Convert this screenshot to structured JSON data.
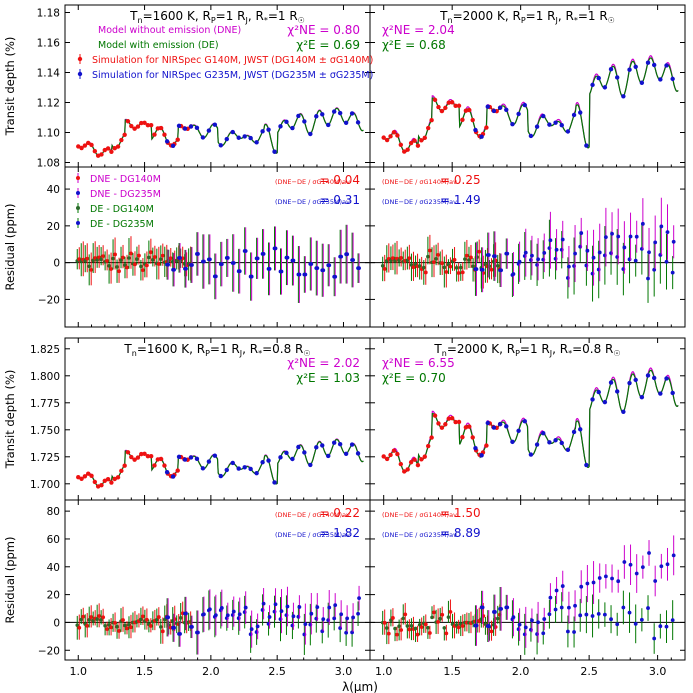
{
  "figure": {
    "xlabel": "λ(μm)",
    "x_ticks": [
      "1.0",
      "1.5",
      "2.0",
      "2.5",
      "3.0"
    ],
    "colors": {
      "ne": "#cc00cc",
      "e": "#007700",
      "red": "#ee1111",
      "blue": "#1111cc",
      "axis": "#000000"
    }
  },
  "chart_data": [
    {
      "type": "line",
      "title": "T$=1600 K, R_P=1 R_J, R*=1 R☉",
      "title_parts": [
        "T",
        "n",
        "=1600 K, R",
        "P",
        "=1 R",
        "J",
        ", R",
        "*",
        "=1 R",
        "☉"
      ],
      "ylabel": "Transit depth (%)",
      "ylim": [
        1.077,
        1.185
      ],
      "yticks": [
        1.08,
        1.1,
        1.12,
        1.14,
        1.16,
        1.18
      ],
      "ytick_labels": [
        "1.08",
        "1.10",
        "1.12",
        "1.14",
        "1.16",
        "1.18"
      ],
      "chi_ne": "χ²NE = 0.80",
      "chi_e": "χ²E = 0.69",
      "legend": [
        "Model without emission (DNE)",
        "Model with emission (DE)",
        "Simulation for NIRSpec G140M, JWST (DG140M ± σG140M)",
        "Simulation for NIRSpec G235M, JWST (DG235M ± σG235M)"
      ]
    },
    {
      "type": "line",
      "title_parts": [
        "T",
        "n",
        "=2000 K, R",
        "P",
        "=1 R",
        "J",
        ", R",
        "*",
        "=1 R",
        "☉"
      ],
      "chi_ne": "χ²NE = 2.04",
      "chi_e": "χ²E = 0.68"
    },
    {
      "type": "scatter",
      "ylabel": "Residual (ppm)",
      "ylim": [
        -35,
        52
      ],
      "yticks": [
        -20,
        0,
        20,
        40
      ],
      "ytick_labels": [
        "−20",
        "0",
        "20",
        "40"
      ],
      "ratio_red": "= 0.04",
      "ratio_blue": "= 0.31",
      "legend": [
        "DNE - DG140M",
        "DNE - DG235M",
        "DE - DG140M",
        "DE - DG235M"
      ]
    },
    {
      "type": "scatter",
      "ratio_red": "= 0.25",
      "ratio_blue": "= 1.49"
    },
    {
      "type": "line",
      "title_parts": [
        "T",
        "n",
        "=1600 K, R",
        "P",
        "=1 R",
        "J",
        ", R",
        "*",
        "=0.8 R",
        "☉"
      ],
      "ylabel": "Transit depth (%)",
      "ylim": [
        1.685,
        1.835
      ],
      "yticks": [
        1.7,
        1.725,
        1.75,
        1.775,
        1.8,
        1.825
      ],
      "ytick_labels": [
        "1.700",
        "1.725",
        "1.750",
        "1.775",
        "1.800",
        "1.825"
      ],
      "chi_ne": "χ²NE = 2.02",
      "chi_e": "χ²E = 1.03"
    },
    {
      "type": "line",
      "title_parts": [
        "T",
        "n",
        "=2000 K, R",
        "P",
        "=1 R",
        "J",
        ", R",
        "*",
        "=0.8 R",
        "☉"
      ],
      "chi_ne": "χ²NE = 6.55",
      "chi_e": "χ²E = 0.70"
    },
    {
      "type": "scatter",
      "ylabel": "Residual (ppm)",
      "ylim": [
        -27,
        88
      ],
      "yticks": [
        -20,
        0,
        20,
        40,
        60,
        80
      ],
      "ytick_labels": [
        "−20",
        "0",
        "20",
        "40",
        "60",
        "80"
      ],
      "ratio_red": "= 0.22",
      "ratio_blue": "= 1.82"
    },
    {
      "type": "scatter",
      "ratio_red": "= 1.50",
      "ratio_blue": "= 8.89"
    }
  ],
  "ratio_label": {
    "red": "(DNE−DE / σG140M)av",
    "blue": "(DNE−DE / σG235M)av"
  }
}
